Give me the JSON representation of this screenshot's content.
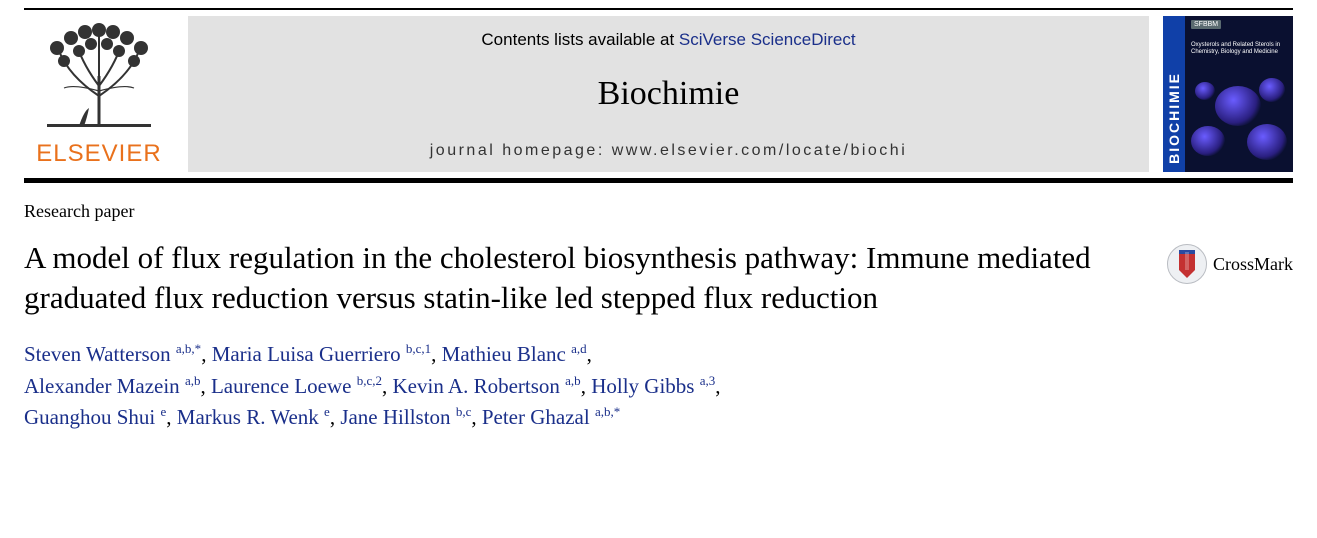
{
  "publisher": {
    "name": "ELSEVIER"
  },
  "banner": {
    "contents_prefix": "Contents lists available at ",
    "sd_link_text": "SciVerse ScienceDirect",
    "journal_title": "Biochimie",
    "homepage_label": "journal homepage: www.elsevier.com/locate/biochi"
  },
  "cover": {
    "spine_text": "BIOCHIMIE",
    "tag": "SFBBM",
    "caption": "Oxysterols and Related Sterols in Chemistry, Biology and Medicine"
  },
  "article": {
    "type": "Research paper",
    "title": "A model of flux regulation in the cholesterol biosynthesis pathway: Immune mediated graduated flux reduction versus statin-like led stepped flux reduction",
    "crossmark_label": "CrossMark"
  },
  "authors": [
    {
      "name": "Steven Watterson",
      "aff": "a,b,*"
    },
    {
      "name": "Maria Luisa Guerriero",
      "aff": "b,c,1"
    },
    {
      "name": "Mathieu Blanc",
      "aff": "a,d"
    },
    {
      "name": "Alexander Mazein",
      "aff": "a,b"
    },
    {
      "name": "Laurence Loewe",
      "aff": "b,c,2"
    },
    {
      "name": "Kevin A. Robertson",
      "aff": "a,b"
    },
    {
      "name": "Holly Gibbs",
      "aff": "a,3"
    },
    {
      "name": "Guanghou Shui",
      "aff": "e"
    },
    {
      "name": "Markus R. Wenk",
      "aff": "e"
    },
    {
      "name": "Jane Hillston",
      "aff": "b,c"
    },
    {
      "name": "Peter Ghazal",
      "aff": "a,b,*"
    }
  ],
  "colors": {
    "link": "#1a2f8a",
    "elsevier_orange": "#e9711c",
    "banner_bg": "#e2e2e2"
  }
}
